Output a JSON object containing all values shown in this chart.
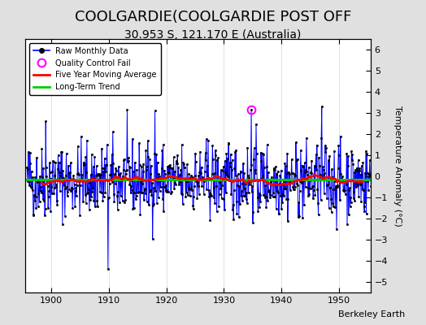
{
  "title": "COOLGARDIE(COOLGARDIE POST OFF",
  "subtitle": "30.953 S, 121.170 E (Australia)",
  "credit": "Berkeley Earth",
  "ylabel": "Temperature Anomaly (°C)",
  "xlim": [
    1895.5,
    1955.5
  ],
  "ylim": [
    -5.5,
    6.5
  ],
  "yticks": [
    -5,
    -4,
    -3,
    -2,
    -1,
    0,
    1,
    2,
    3,
    4,
    5,
    6
  ],
  "xticks": [
    1900,
    1910,
    1920,
    1930,
    1940,
    1950
  ],
  "start_year": 1895.75,
  "n_months": 732,
  "raw_color": "#0000FF",
  "ma_color": "#FF0000",
  "trend_color": "#00CC00",
  "qc_color": "#FF00FF",
  "background_color": "#E0E0E0",
  "plot_background": "#FFFFFF",
  "title_fontsize": 13,
  "subtitle_fontsize": 10,
  "ylabel_fontsize": 8,
  "credit_fontsize": 8,
  "seed": 42,
  "qc_fail_index": 468,
  "qc_fail_value": 3.15
}
